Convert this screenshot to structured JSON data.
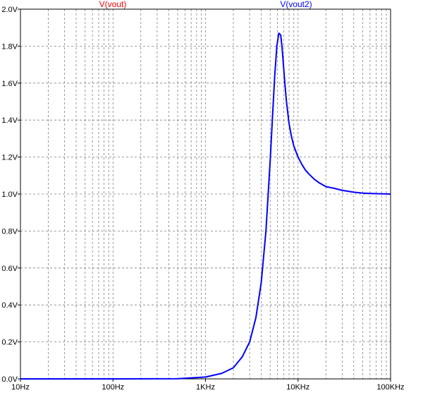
{
  "colors": {
    "background": "#ffffff",
    "axis": "#000000",
    "grid": "#7f7f7f",
    "vout": "#ff0000",
    "vout2": "#0000ff"
  },
  "chart_data": {
    "type": "line",
    "x_scale": "log",
    "xlim": [
      10,
      100000
    ],
    "ylim": [
      0,
      2.0
    ],
    "grid": true,
    "legend": "top",
    "x_ticks": [
      {
        "value": 10,
        "label": "10Hz"
      },
      {
        "value": 100,
        "label": "100Hz"
      },
      {
        "value": 1000,
        "label": "1KHz"
      },
      {
        "value": 10000,
        "label": "10KHz"
      },
      {
        "value": 100000,
        "label": "100KHz"
      }
    ],
    "y_ticks": [
      {
        "value": 0.0,
        "label": "0.0V"
      },
      {
        "value": 0.2,
        "label": "0.2V"
      },
      {
        "value": 0.4,
        "label": "0.4V"
      },
      {
        "value": 0.6,
        "label": "0.6V"
      },
      {
        "value": 0.8,
        "label": "0.8V"
      },
      {
        "value": 1.0,
        "label": "1.0V"
      },
      {
        "value": 1.2,
        "label": "1.2V"
      },
      {
        "value": 1.4,
        "label": "1.4V"
      },
      {
        "value": 1.6,
        "label": "1.6V"
      },
      {
        "value": 1.8,
        "label": "1.8V"
      },
      {
        "value": 2.0,
        "label": "2.0V"
      }
    ],
    "series": [
      {
        "name": "V(vout)",
        "color": "#ff0000",
        "x": [],
        "y": []
      },
      {
        "name": "V(vout2)",
        "color": "#0000ff",
        "x": [
          10,
          100,
          500,
          1000,
          1500,
          2000,
          2500,
          3000,
          3500,
          4000,
          4500,
          5000,
          5300,
          5600,
          5900,
          6200,
          6500,
          6700,
          6900,
          7200,
          7500,
          8000,
          8500,
          9000,
          10000,
          11000,
          12000,
          13000,
          15000,
          17000,
          20000,
          25000,
          30000,
          40000,
          50000,
          70000,
          100000
        ],
        "y": [
          0.0,
          0.0,
          0.001,
          0.01,
          0.03,
          0.06,
          0.12,
          0.2,
          0.33,
          0.52,
          0.8,
          1.18,
          1.42,
          1.64,
          1.8,
          1.87,
          1.86,
          1.8,
          1.72,
          1.6,
          1.5,
          1.38,
          1.31,
          1.26,
          1.2,
          1.16,
          1.13,
          1.11,
          1.08,
          1.06,
          1.04,
          1.03,
          1.02,
          1.01,
          1.005,
          1.002,
          1.0
        ]
      }
    ]
  }
}
